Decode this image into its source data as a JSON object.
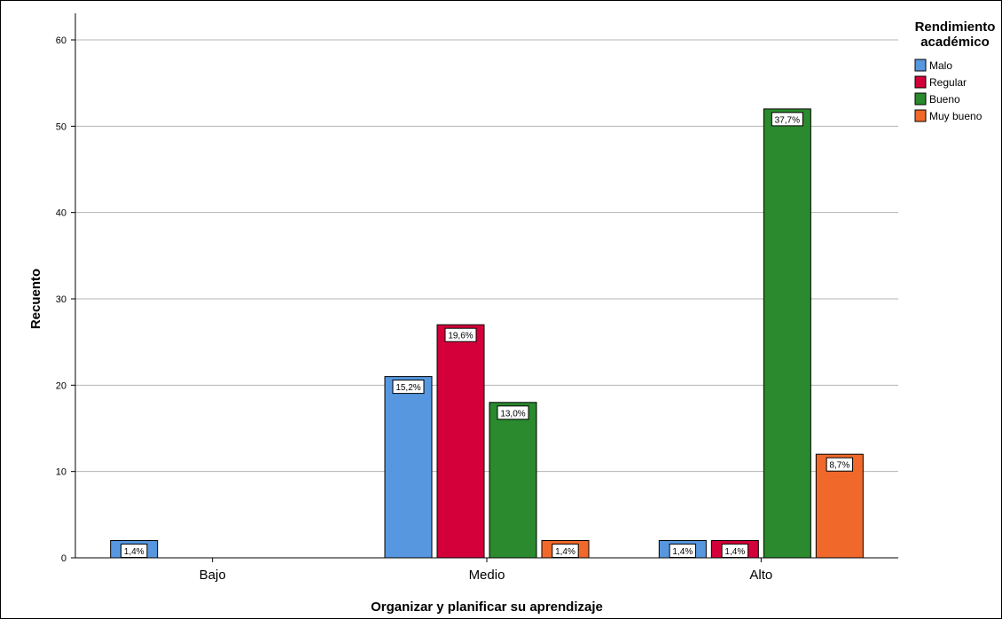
{
  "chart_data": {
    "type": "bar",
    "title": "",
    "xlabel": "Organizar y planificar su aprendizaje",
    "ylabel": "Recuento",
    "ylim": [
      0,
      60
    ],
    "yticks": [
      0,
      10,
      20,
      30,
      40,
      50,
      60
    ],
    "grid": true,
    "categories": [
      "Bajo",
      "Medio",
      "Alto"
    ],
    "legend": {
      "title_line1": "Rendimiento",
      "title_line2": "académico",
      "placement": "top-right"
    },
    "series": [
      {
        "name": "Malo",
        "color": "#5797e0",
        "values": [
          2,
          21,
          2
        ],
        "labels": [
          "1,4%",
          "15,2%",
          "1,4%"
        ]
      },
      {
        "name": "Regular",
        "color": "#d4003a",
        "values": [
          0,
          27,
          2
        ],
        "labels": [
          "",
          "19,6%",
          "1,4%"
        ]
      },
      {
        "name": "Bueno",
        "color": "#2a8a2d",
        "values": [
          0,
          18,
          52
        ],
        "labels": [
          "",
          "13,0%",
          "37,7%"
        ]
      },
      {
        "name": "Muy bueno",
        "color": "#f0692b",
        "values": [
          0,
          2,
          12
        ],
        "labels": [
          "",
          "1,4%",
          "8,7%"
        ]
      }
    ]
  }
}
